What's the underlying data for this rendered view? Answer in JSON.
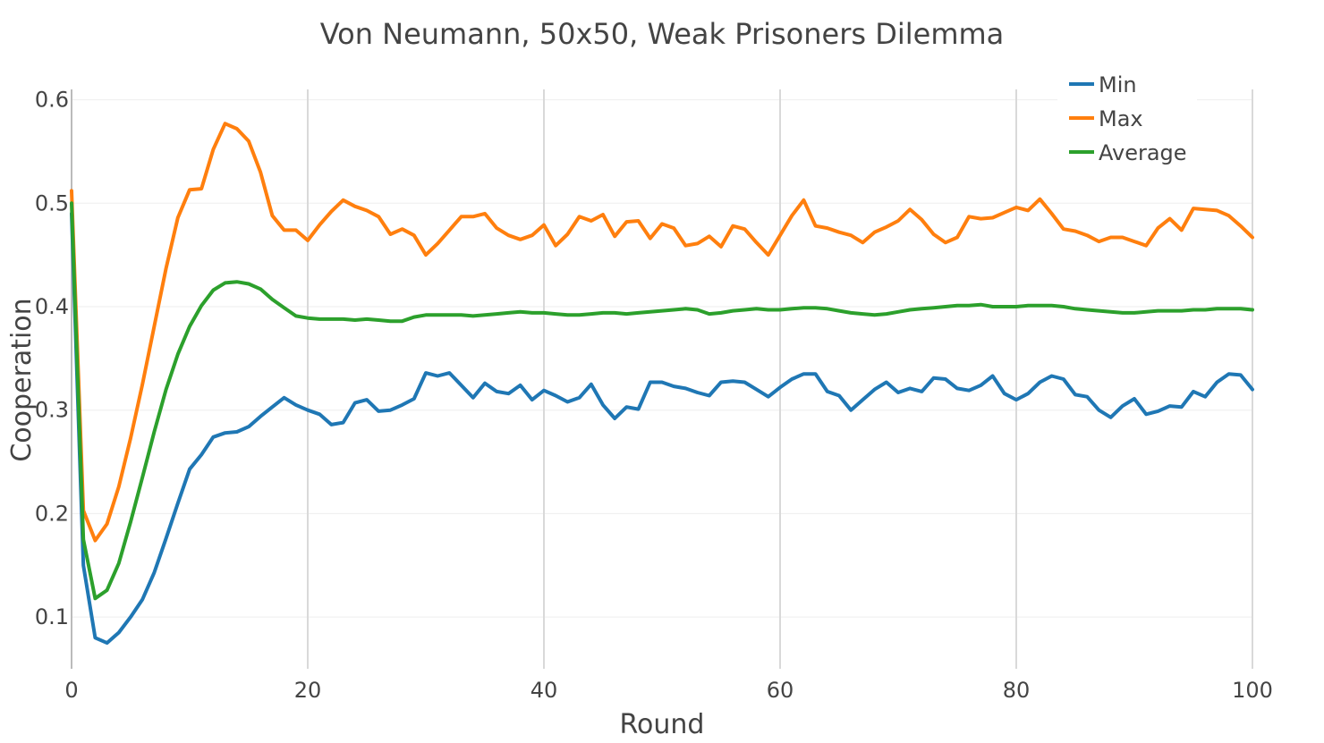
{
  "chart_data": {
    "type": "line",
    "title": "Von Neumann, 50x50, Weak Prisoners Dilemma",
    "xlabel": "Round",
    "ylabel": "Cooperation",
    "xlim": [
      0,
      100
    ],
    "ylim": [
      0.05,
      0.61
    ],
    "x_ticks": [
      0,
      20,
      40,
      60,
      80,
      100
    ],
    "y_ticks": [
      0.1,
      0.2,
      0.3,
      0.4,
      0.5,
      0.6
    ],
    "x_tick_labels": [
      "0",
      "20",
      "40",
      "60",
      "80",
      "100"
    ],
    "y_tick_labels": [
      "0.1",
      "0.2",
      "0.3",
      "0.4",
      "0.5",
      "0.6"
    ],
    "grid": true,
    "legend_position": "top-right",
    "x": [
      0,
      1,
      2,
      3,
      4,
      5,
      6,
      7,
      8,
      9,
      10,
      11,
      12,
      13,
      14,
      15,
      16,
      17,
      18,
      19,
      20,
      21,
      22,
      23,
      24,
      25,
      26,
      27,
      28,
      29,
      30,
      31,
      32,
      33,
      34,
      35,
      36,
      37,
      38,
      39,
      40,
      41,
      42,
      43,
      44,
      45,
      46,
      47,
      48,
      49,
      50,
      51,
      52,
      53,
      54,
      55,
      56,
      57,
      58,
      59,
      60,
      61,
      62,
      63,
      64,
      65,
      66,
      67,
      68,
      69,
      70,
      71,
      72,
      73,
      74,
      75,
      76,
      77,
      78,
      79,
      80,
      81,
      82,
      83,
      84,
      85,
      86,
      87,
      88,
      89,
      90,
      91,
      92,
      93,
      94,
      95,
      96,
      97,
      98,
      99,
      100
    ],
    "series": [
      {
        "name": "Min",
        "color": "#1f77b4",
        "values": [
          0.49,
          0.15,
          0.08,
          0.075,
          0.085,
          0.1,
          0.117,
          0.143,
          0.176,
          0.21,
          0.243,
          0.257,
          0.274,
          0.278,
          0.279,
          0.284,
          0.294,
          0.303,
          0.312,
          0.305,
          0.3,
          0.296,
          0.286,
          0.288,
          0.307,
          0.31,
          0.299,
          0.3,
          0.305,
          0.311,
          0.336,
          0.333,
          0.336,
          0.324,
          0.312,
          0.326,
          0.318,
          0.316,
          0.324,
          0.31,
          0.319,
          0.314,
          0.308,
          0.312,
          0.325,
          0.305,
          0.292,
          0.303,
          0.301,
          0.327,
          0.327,
          0.323,
          0.321,
          0.317,
          0.314,
          0.327,
          0.328,
          0.327,
          0.32,
          0.313,
          0.322,
          0.33,
          0.335,
          0.335,
          0.318,
          0.314,
          0.3,
          0.31,
          0.32,
          0.327,
          0.317,
          0.321,
          0.318,
          0.331,
          0.33,
          0.321,
          0.319,
          0.324,
          0.333,
          0.316,
          0.31,
          0.316,
          0.327,
          0.333,
          0.33,
          0.315,
          0.313,
          0.3,
          0.293,
          0.304,
          0.311,
          0.296,
          0.299,
          0.304,
          0.303,
          0.318,
          0.313,
          0.327,
          0.335,
          0.334,
          0.32
        ]
      },
      {
        "name": "Max",
        "color": "#ff7f0e",
        "values": [
          0.512,
          0.203,
          0.174,
          0.19,
          0.226,
          0.273,
          0.325,
          0.381,
          0.437,
          0.486,
          0.513,
          0.514,
          0.552,
          0.577,
          0.572,
          0.56,
          0.53,
          0.488,
          0.474,
          0.474,
          0.464,
          0.479,
          0.492,
          0.503,
          0.497,
          0.493,
          0.487,
          0.47,
          0.475,
          0.469,
          0.45,
          0.461,
          0.474,
          0.487,
          0.487,
          0.49,
          0.476,
          0.469,
          0.465,
          0.469,
          0.479,
          0.459,
          0.47,
          0.487,
          0.483,
          0.489,
          0.468,
          0.482,
          0.483,
          0.466,
          0.48,
          0.476,
          0.459,
          0.461,
          0.468,
          0.458,
          0.478,
          0.475,
          0.462,
          0.45,
          0.469,
          0.488,
          0.503,
          0.478,
          0.476,
          0.472,
          0.469,
          0.462,
          0.472,
          0.477,
          0.483,
          0.494,
          0.484,
          0.47,
          0.462,
          0.467,
          0.487,
          0.485,
          0.486,
          0.491,
          0.496,
          0.493,
          0.504,
          0.49,
          0.475,
          0.473,
          0.469,
          0.463,
          0.467,
          0.467,
          0.463,
          0.459,
          0.476,
          0.485,
          0.474,
          0.495,
          0.494,
          0.493,
          0.488,
          0.478,
          0.467
        ]
      },
      {
        "name": "Average",
        "color": "#2ca02c",
        "values": [
          0.5,
          0.175,
          0.118,
          0.126,
          0.152,
          0.192,
          0.235,
          0.279,
          0.32,
          0.354,
          0.381,
          0.401,
          0.416,
          0.423,
          0.424,
          0.422,
          0.417,
          0.407,
          0.399,
          0.391,
          0.389,
          0.388,
          0.388,
          0.388,
          0.387,
          0.388,
          0.387,
          0.386,
          0.386,
          0.39,
          0.392,
          0.392,
          0.392,
          0.392,
          0.391,
          0.392,
          0.393,
          0.394,
          0.395,
          0.394,
          0.394,
          0.393,
          0.392,
          0.392,
          0.393,
          0.394,
          0.394,
          0.393,
          0.394,
          0.395,
          0.396,
          0.397,
          0.398,
          0.397,
          0.393,
          0.394,
          0.396,
          0.397,
          0.398,
          0.397,
          0.397,
          0.398,
          0.399,
          0.399,
          0.398,
          0.396,
          0.394,
          0.393,
          0.392,
          0.393,
          0.395,
          0.397,
          0.398,
          0.399,
          0.4,
          0.401,
          0.401,
          0.402,
          0.4,
          0.4,
          0.4,
          0.401,
          0.401,
          0.401,
          0.4,
          0.398,
          0.397,
          0.396,
          0.395,
          0.394,
          0.394,
          0.395,
          0.396,
          0.396,
          0.396,
          0.397,
          0.397,
          0.398,
          0.398,
          0.398,
          0.397
        ]
      }
    ]
  }
}
